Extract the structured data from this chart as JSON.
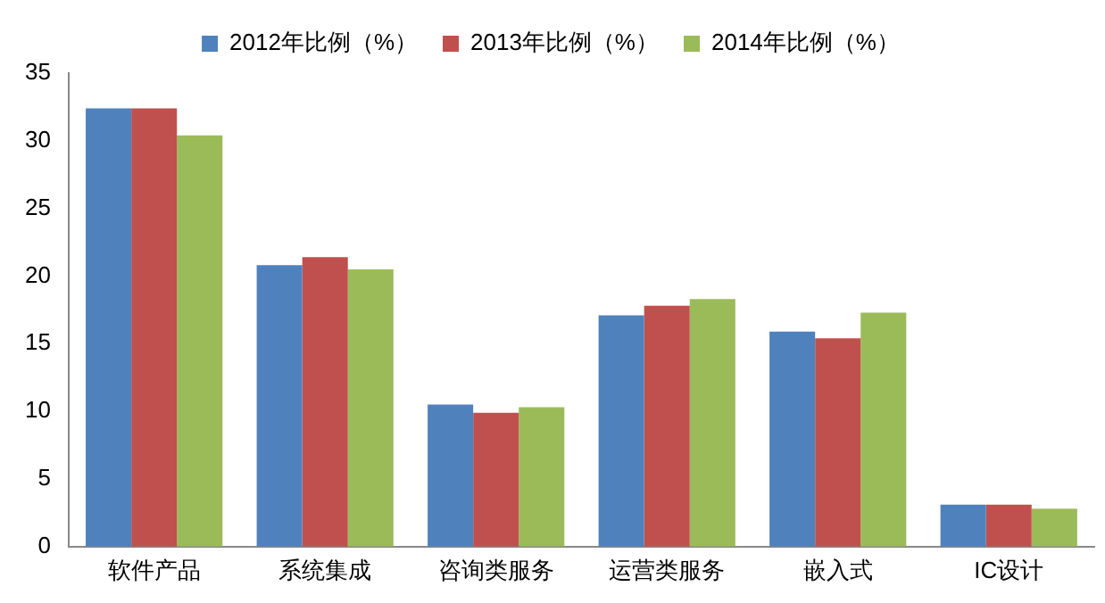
{
  "chart_data": {
    "type": "bar",
    "categories": [
      "软件产品",
      "系统集成",
      "咨询类服务",
      "运营类服务",
      "嵌入式",
      "IC设计"
    ],
    "series": [
      {
        "name": "2012年比例（%）",
        "color": "#4f81bd",
        "values": [
          32.4,
          20.8,
          10.5,
          17.1,
          15.9,
          3.1
        ]
      },
      {
        "name": "2013年比例（%）",
        "color": "#c0504d",
        "values": [
          32.4,
          21.4,
          9.9,
          17.8,
          15.4,
          3.1
        ]
      },
      {
        "name": "2014年比例（%）",
        "color": "#9bbb59",
        "values": [
          30.4,
          20.5,
          10.3,
          18.3,
          17.3,
          2.8
        ]
      }
    ],
    "ylim": [
      0,
      35
    ],
    "yticks": [
      0,
      5,
      10,
      15,
      20,
      25,
      30,
      35
    ],
    "grid": false,
    "legend": "top"
  }
}
